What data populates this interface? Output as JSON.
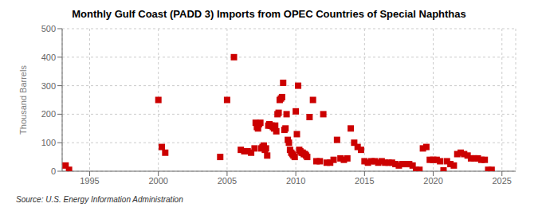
{
  "chart_data": {
    "type": "scatter",
    "title": "Monthly Gulf Coast (PADD 3) Imports from OPEC Countries of Special Naphthas",
    "y_label": "Thousand Barrels",
    "source": "Source: U.S. Energy Information Administration",
    "color": "#cc0000",
    "marker": "square",
    "grid": true,
    "xlim": [
      1993.0,
      2026.0
    ],
    "ylim": [
      0,
      500
    ],
    "xticks": [
      1995,
      2000,
      2005,
      2010,
      2015,
      2020,
      2025
    ],
    "yticks": [
      0,
      100,
      200,
      300,
      400,
      500
    ],
    "x": [
      1993.25,
      1993.5,
      2000.0,
      2000.25,
      2000.5,
      2004.5,
      2005.0,
      2005.5,
      2006.0,
      2006.25,
      2006.5,
      2006.75,
      2007.0,
      2007.08,
      2007.17,
      2007.25,
      2007.33,
      2007.42,
      2007.5,
      2007.58,
      2007.67,
      2007.75,
      2007.83,
      2007.92,
      2008.0,
      2008.08,
      2008.17,
      2008.25,
      2008.33,
      2008.42,
      2008.5,
      2008.58,
      2008.67,
      2008.75,
      2008.83,
      2008.92,
      2009.0,
      2009.08,
      2009.17,
      2009.25,
      2009.33,
      2009.42,
      2009.5,
      2009.58,
      2009.67,
      2009.75,
      2009.83,
      2009.92,
      2010.0,
      2010.08,
      2010.17,
      2010.25,
      2010.33,
      2010.42,
      2010.5,
      2010.58,
      2010.67,
      2010.75,
      2010.83,
      2011.0,
      2011.25,
      2011.5,
      2011.75,
      2012.0,
      2012.25,
      2012.5,
      2012.75,
      2013.0,
      2013.25,
      2013.5,
      2013.75,
      2014.0,
      2014.25,
      2014.5,
      2014.75,
      2015.0,
      2015.25,
      2015.5,
      2015.75,
      2016.0,
      2016.25,
      2016.5,
      2016.75,
      2017.0,
      2017.25,
      2017.5,
      2017.75,
      2018.0,
      2018.25,
      2018.5,
      2018.75,
      2019.0,
      2019.25,
      2019.5,
      2019.75,
      2020.0,
      2020.25,
      2020.5,
      2020.75,
      2021.0,
      2021.25,
      2021.5,
      2021.75,
      2022.0,
      2022.25,
      2022.5,
      2022.75,
      2023.0,
      2023.25,
      2023.5,
      2023.75,
      2024.0,
      2024.25
    ],
    "values": [
      20,
      5,
      250,
      85,
      65,
      50,
      250,
      400,
      75,
      70,
      70,
      65,
      80,
      170,
      155,
      150,
      165,
      170,
      80,
      85,
      90,
      75,
      80,
      55,
      160,
      165,
      160,
      160,
      155,
      150,
      160,
      140,
      200,
      205,
      250,
      255,
      260,
      310,
      145,
      150,
      200,
      110,
      100,
      75,
      65,
      60,
      55,
      50,
      210,
      130,
      300,
      75,
      70,
      65,
      65,
      60,
      60,
      55,
      50,
      190,
      250,
      35,
      35,
      200,
      30,
      30,
      40,
      110,
      45,
      40,
      45,
      150,
      100,
      85,
      75,
      35,
      30,
      35,
      35,
      30,
      35,
      30,
      30,
      30,
      25,
      20,
      25,
      25,
      25,
      20,
      5,
      5,
      80,
      85,
      40,
      40,
      40,
      35,
      3,
      35,
      25,
      20,
      60,
      65,
      60,
      55,
      45,
      45,
      45,
      40,
      40,
      5,
      5
    ]
  }
}
